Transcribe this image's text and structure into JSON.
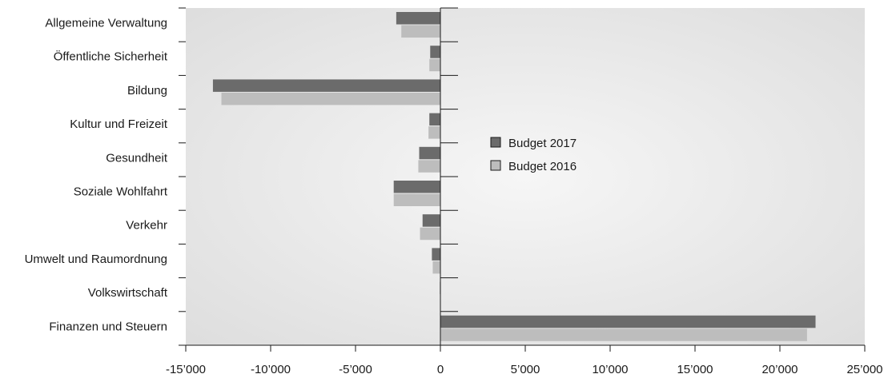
{
  "chart_data": {
    "type": "bar",
    "orientation": "horizontal",
    "title": "",
    "xlabel": "",
    "ylabel": "",
    "categories": [
      "Allgemeine Verwaltung",
      "Öffentliche Sicherheit",
      "Bildung",
      "Kultur und Freizeit",
      "Gesundheit",
      "Soziale Wohlfahrt",
      "Verkehr",
      "Umwelt und Raumordnung",
      "Volkswirtschaft",
      "Finanzen und Steuern"
    ],
    "series": [
      {
        "name": "Budget 2017",
        "color": "#6b6b6b",
        "values": [
          -2600,
          -600,
          -13400,
          -650,
          -1250,
          -2750,
          -1050,
          -500,
          -30,
          22100
        ]
      },
      {
        "name": "Budget 2016",
        "color": "#bdbdbd",
        "values": [
          -2300,
          -650,
          -12900,
          -700,
          -1300,
          -2750,
          -1200,
          -450,
          -20,
          21600
        ]
      }
    ],
    "xlim": [
      -15000,
      25000
    ],
    "xticks": [
      -15000,
      -10000,
      -5000,
      0,
      5000,
      10000,
      15000,
      20000,
      25000
    ],
    "xtick_labels": [
      "-15’000",
      "-10’000",
      "-5’000",
      "0",
      "5’000",
      "10’000",
      "15’000",
      "20’000",
      "25’000"
    ],
    "grid": false,
    "legend_position": "center",
    "background": "gradient-gray"
  }
}
